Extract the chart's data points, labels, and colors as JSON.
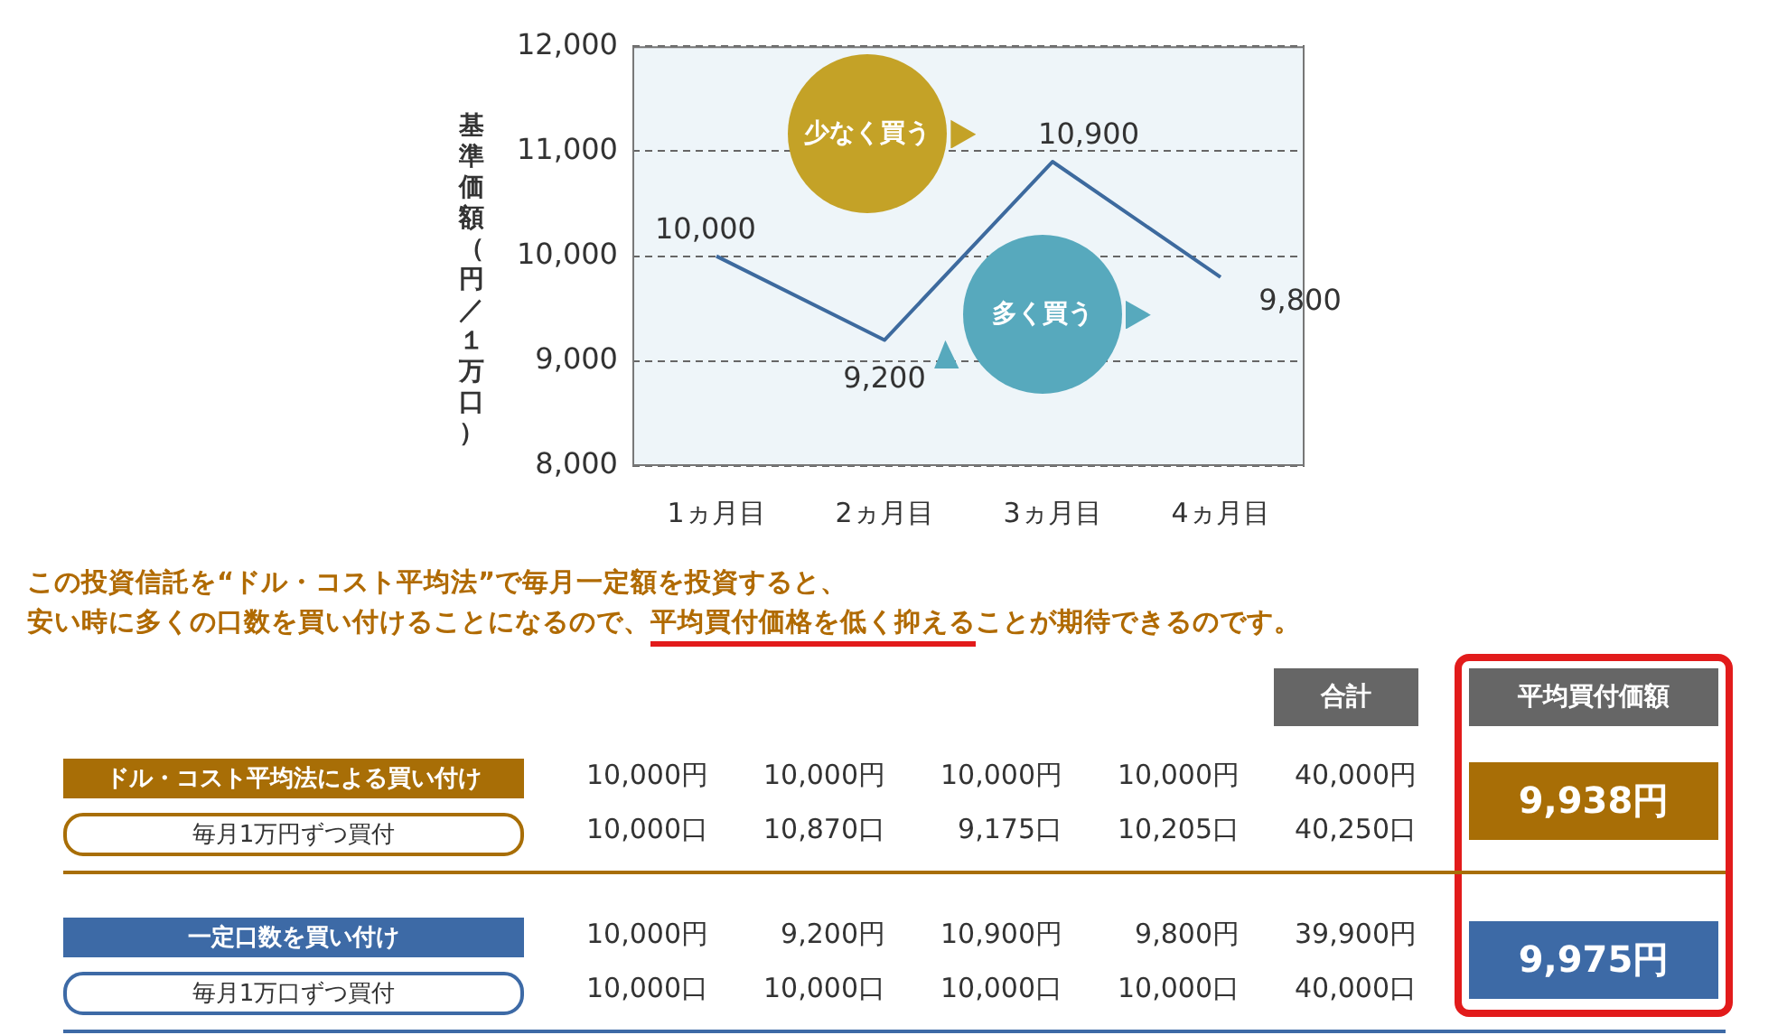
{
  "chart_data": [
    {
      "type": "line",
      "ylabel": "基準価額（円／１万口）",
      "categories": [
        "1ヵ月目",
        "2ヵ月目",
        "3ヵ月目",
        "4ヵ月目"
      ],
      "series": [
        {
          "color": "#3d6a9e",
          "values": [
            10000,
            9200,
            10900,
            9800
          ],
          "value_labels": [
            "10,000",
            "9,200",
            "10,900",
            "9,800"
          ]
        }
      ],
      "ylim": [
        8000,
        12000
      ],
      "yticks": [
        {
          "value": 8000,
          "label": "8,000"
        },
        {
          "value": 9000,
          "label": "9,000"
        },
        {
          "value": 10000,
          "label": "10,000"
        },
        {
          "value": 11000,
          "label": "11,000"
        },
        {
          "value": 12000,
          "label": "12,000"
        }
      ],
      "grid": "y",
      "marker": "none",
      "annotations": [
        "少なく買う",
        "多く買う",
        "この投資信託を“ドル・コスト平均法”で毎月一定額を投資すると、",
        "安い時に多くの口数を買い付けることになるので、",
        "平均買付価格を低く抑える",
        "ことが期待できるのです。"
      ]
    },
    {
      "type": "other",
      "annotations": [
        "合計",
        "平均買付価額",
        "ドル・コスト平均法による買い付け",
        "毎月1万円ずつ買付",
        "10,000円",
        "10,000円",
        "10,000円",
        "10,000円",
        "40,000円",
        "10,000口",
        "10,870口",
        "9,175口",
        "10,205口",
        "40,250口",
        "9,938円",
        "一定口数を買い付け",
        "毎月1万口ずつ買付",
        "10,000円",
        "9,200円",
        "10,900円",
        "9,800円",
        "39,900円",
        "10,000口",
        "10,000口",
        "10,000口",
        "10,000口",
        "40,000口",
        "9,975円"
      ]
    }
  ]
}
